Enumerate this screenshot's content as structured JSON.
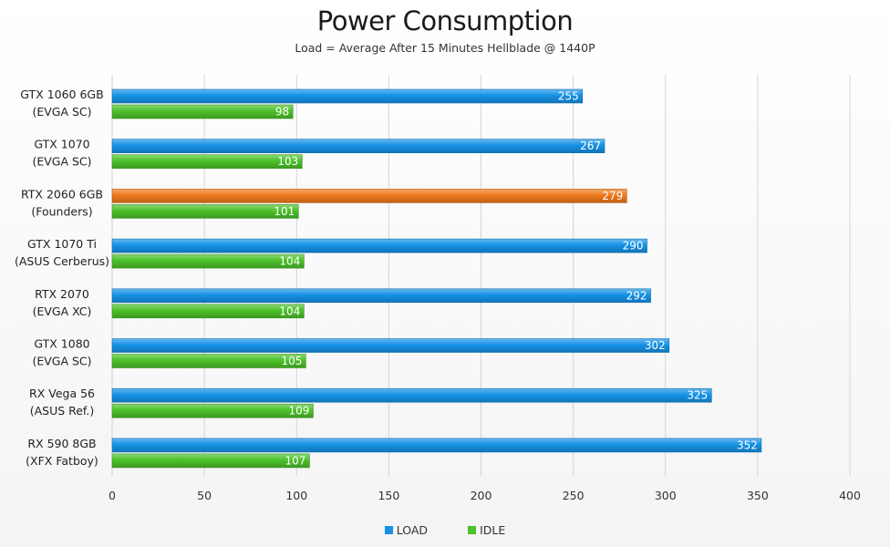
{
  "chart_data": {
    "type": "bar",
    "orientation": "horizontal",
    "title": "Power Consumption",
    "subtitle": "Load = Average After 15 Minutes Hellblade @ 1440P",
    "categories": [
      [
        "GTX 1060 6GB",
        "(EVGA SC)"
      ],
      [
        "GTX 1070",
        "(EVGA SC)"
      ],
      [
        "RTX 2060 6GB",
        "(Founders)"
      ],
      [
        "GTX 1070 Ti",
        "(ASUS Cerberus)"
      ],
      [
        "RTX 2070",
        "(EVGA XC)"
      ],
      [
        "GTX 1080",
        "(EVGA SC)"
      ],
      [
        "RX Vega 56",
        "(ASUS Ref.)"
      ],
      [
        "RX 590 8GB",
        "(XFX Fatboy)"
      ]
    ],
    "series": [
      {
        "name": "LOAD",
        "color": "#1592e6",
        "values": [
          255,
          267,
          279,
          290,
          292,
          302,
          325,
          352
        ]
      },
      {
        "name": "IDLE",
        "color": "#4cc12a",
        "values": [
          98,
          103,
          101,
          104,
          104,
          105,
          109,
          107
        ]
      }
    ],
    "highlight": {
      "category_index": 2,
      "series_index": 0,
      "color": "#ee7a1c"
    },
    "xlim": [
      0,
      400
    ],
    "xticks": [
      0,
      50,
      100,
      150,
      200,
      250,
      300,
      350,
      400
    ],
    "grid": "vertical",
    "legend_position": "bottom-center"
  }
}
